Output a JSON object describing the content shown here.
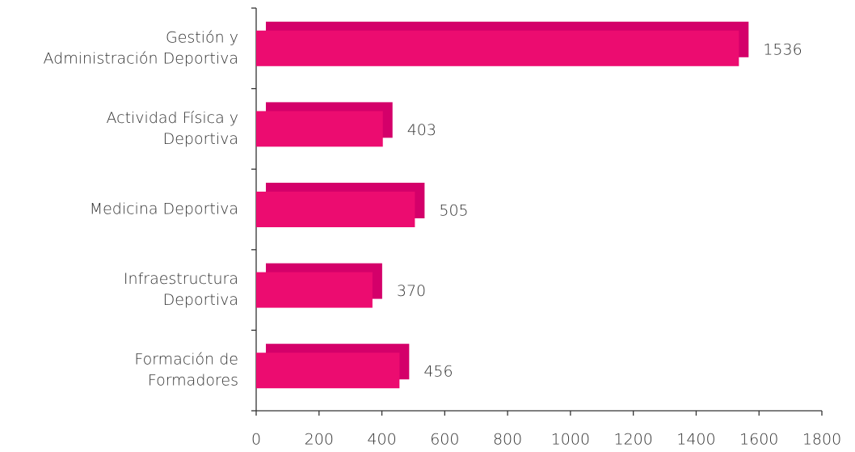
{
  "chart_data": {
    "type": "bar",
    "orientation": "horizontal",
    "categories": [
      [
        "Gestión y",
        "Administración Deportiva"
      ],
      [
        "Actividad Física y",
        "Deportiva"
      ],
      [
        "Medicina Deportiva"
      ],
      [
        "Infraestructura",
        "Deportiva"
      ],
      [
        "Formación de",
        "Formadores"
      ]
    ],
    "values": [
      1536,
      403,
      505,
      370,
      456
    ],
    "color": "#ec0c70",
    "shadow_color": "#d4006a",
    "xlim": [
      0,
      1800
    ],
    "xticks": [
      0,
      200,
      400,
      600,
      800,
      1000,
      1200,
      1400,
      1600,
      1800
    ]
  }
}
